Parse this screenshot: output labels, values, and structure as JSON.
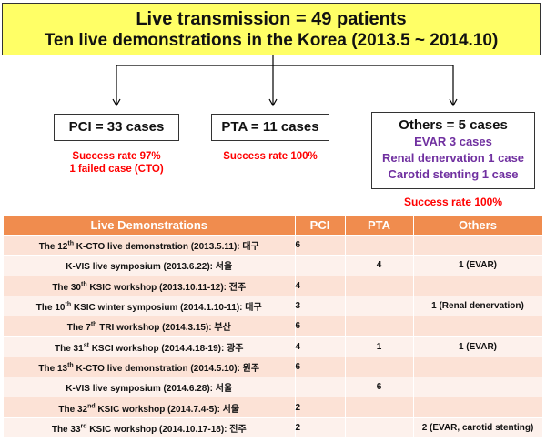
{
  "title": {
    "line1": "Live transmission = 49 patients",
    "line2": "Ten live demonstrations in the Korea (2013.5 ~ 2014.10)"
  },
  "boxes": {
    "pci": {
      "label": "PCI = 33 cases",
      "note1": "Success rate 97%",
      "note2": "1 failed case (CTO)"
    },
    "pta": {
      "label": "PTA = 11 cases",
      "note1": "Success rate 100%"
    },
    "others": {
      "label": "Others = 5 cases",
      "items": [
        "EVAR 3 cases",
        "Renal denervation 1 case",
        "Carotid stenting 1 case"
      ],
      "note1": "Success rate 100%"
    }
  },
  "table": {
    "headers": [
      "Live Demonstrations",
      "PCI",
      "PTA",
      "Others"
    ],
    "rows": [
      {
        "pre": "The 12",
        "sup": "th",
        "post": " K-CTO live demonstration (2013.5.11): 대구",
        "pci": "6",
        "pta": "",
        "others": ""
      },
      {
        "pre": "K-VIS live symposium (2013.6.22): 서울",
        "sup": "",
        "post": "",
        "pci": "",
        "pta": "4",
        "others": "1 (EVAR)"
      },
      {
        "pre": "The 30",
        "sup": "th",
        "post": " KSIC workshop (2013.10.11-12): 전주",
        "pci": "4",
        "pta": "",
        "others": ""
      },
      {
        "pre": "The 10",
        "sup": "th",
        "post": " KSIC winter symposium (2014.1.10-11): 대구",
        "pci": "3",
        "pta": "",
        "others": "1 (Renal denervation)"
      },
      {
        "pre": "The 7",
        "sup": "th",
        "post": " TRI workshop (2014.3.15): 부산",
        "pci": "6",
        "pta": "",
        "others": ""
      },
      {
        "pre": "The 31",
        "sup": "st",
        "post": " KSCI workshop (2014.4.18-19): 광주",
        "pci": "4",
        "pta": "1",
        "others": "1 (EVAR)"
      },
      {
        "pre": "The 13",
        "sup": "th",
        "post": " K-CTO live demonstration (2014.5.10): 원주",
        "pci": "6",
        "pta": "",
        "others": ""
      },
      {
        "pre": "K-VIS live symposium (2014.6.28): 서울",
        "sup": "",
        "post": "",
        "pci": "",
        "pta": "6",
        "others": ""
      },
      {
        "pre": "The 32",
        "sup": "nd",
        "post": " KSIC workshop (2014.7.4-5): 서울",
        "pci": "2",
        "pta": "",
        "others": ""
      },
      {
        "pre": "The 33",
        "sup": "rd",
        "post": " KSIC workshop (2014.10.17-18): 전주",
        "pci": "2",
        "pta": "",
        "others": "2 (EVAR, carotid stenting)"
      }
    ]
  }
}
